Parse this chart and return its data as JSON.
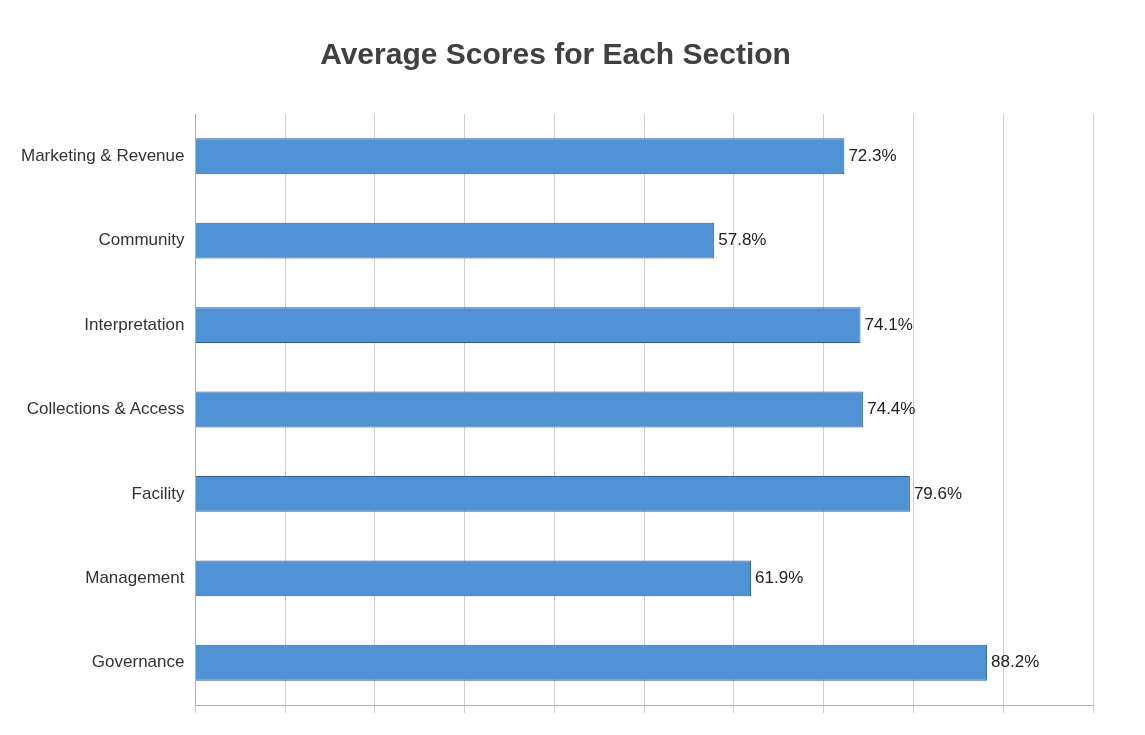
{
  "chart_data": {
    "type": "bar",
    "orientation": "horizontal",
    "title": "Average Scores for Each Section",
    "categories": [
      "Marketing & Revenue",
      "Community",
      "Interpretation",
      "Collections & Access",
      "Facility",
      "Management",
      "Governance"
    ],
    "values": [
      72.3,
      57.8,
      74.1,
      74.4,
      79.6,
      61.9,
      88.2
    ],
    "value_labels": [
      "72.3%",
      "57.8%",
      "74.1%",
      "74.4%",
      "79.6%",
      "61.9%",
      "88.2%"
    ],
    "color": "#4f92d6",
    "xlim": [
      0,
      100
    ],
    "xticks": [
      {
        "value": 0,
        "label": null
      },
      {
        "value": 10,
        "label": null
      },
      {
        "value": 20,
        "label": null
      },
      {
        "value": 30,
        "label": null
      },
      {
        "value": 40,
        "label": null
      },
      {
        "value": 50,
        "label": null
      },
      {
        "value": 60,
        "label": null
      },
      {
        "value": 70,
        "label": null
      },
      {
        "value": 80,
        "label": null
      },
      {
        "value": 90,
        "label": null
      },
      {
        "value": 100,
        "label": null
      }
    ],
    "grid": "x",
    "tick_labels": "y",
    "legend": false
  }
}
